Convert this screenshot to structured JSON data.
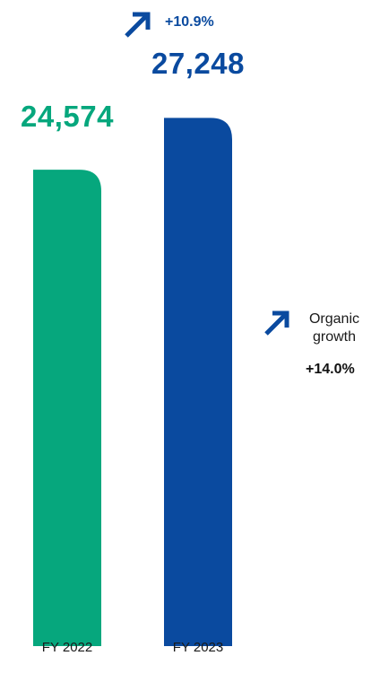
{
  "chart_data": {
    "type": "bar",
    "categories": [
      "FY 2022",
      "FY 2023"
    ],
    "values": [
      24574,
      27248
    ],
    "value_labels": [
      "24,574",
      "27,248"
    ],
    "colors": [
      "#06a77d",
      "#0a4a9f"
    ],
    "ylim": [
      0,
      28700
    ],
    "annotations": {
      "total_growth": "+10.9%",
      "organic_label_line1": "Organic",
      "organic_label_line2": "growth",
      "organic_growth": "+14.0%"
    }
  },
  "icons": {
    "growth_arrow": "arrow-up-right-icon",
    "arrow_color": "#0a4a9f"
  }
}
